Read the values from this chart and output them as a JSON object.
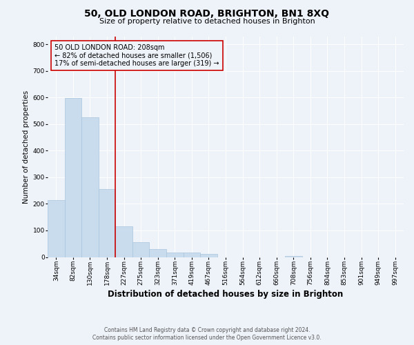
{
  "title": "50, OLD LONDON ROAD, BRIGHTON, BN1 8XQ",
  "subtitle": "Size of property relative to detached houses in Brighton",
  "xlabel": "Distribution of detached houses by size in Brighton",
  "ylabel": "Number of detached properties",
  "footer_line1": "Contains HM Land Registry data © Crown copyright and database right 2024.",
  "footer_line2": "Contains public sector information licensed under the Open Government Licence v3.0.",
  "annotation_line1": "50 OLD LONDON ROAD: 208sqm",
  "annotation_line2": "← 82% of detached houses are smaller (1,506)",
  "annotation_line3": "17% of semi-detached houses are larger (319) →",
  "bar_labels": [
    "34sqm",
    "82sqm",
    "130sqm",
    "178sqm",
    "227sqm",
    "275sqm",
    "323sqm",
    "371sqm",
    "419sqm",
    "467sqm",
    "516sqm",
    "564sqm",
    "612sqm",
    "660sqm",
    "708sqm",
    "756sqm",
    "804sqm",
    "853sqm",
    "901sqm",
    "949sqm",
    "997sqm"
  ],
  "bar_values": [
    213,
    597,
    524,
    255,
    115,
    55,
    30,
    17,
    16,
    11,
    0,
    0,
    0,
    0,
    5,
    0,
    0,
    0,
    0,
    0,
    0
  ],
  "bar_color": "#c9dcee",
  "bar_edge_color": "#a8c4dd",
  "redline_color": "#cc0000",
  "background_color": "#eef2f9",
  "ylim": [
    0,
    830
  ],
  "yticks": [
    0,
    100,
    200,
    300,
    400,
    500,
    600,
    700,
    800
  ],
  "title_fontsize": 10,
  "subtitle_fontsize": 8,
  "xlabel_fontsize": 8.5,
  "ylabel_fontsize": 7.5,
  "tick_fontsize": 6.5,
  "annot_fontsize": 7,
  "footer_fontsize": 5.5
}
